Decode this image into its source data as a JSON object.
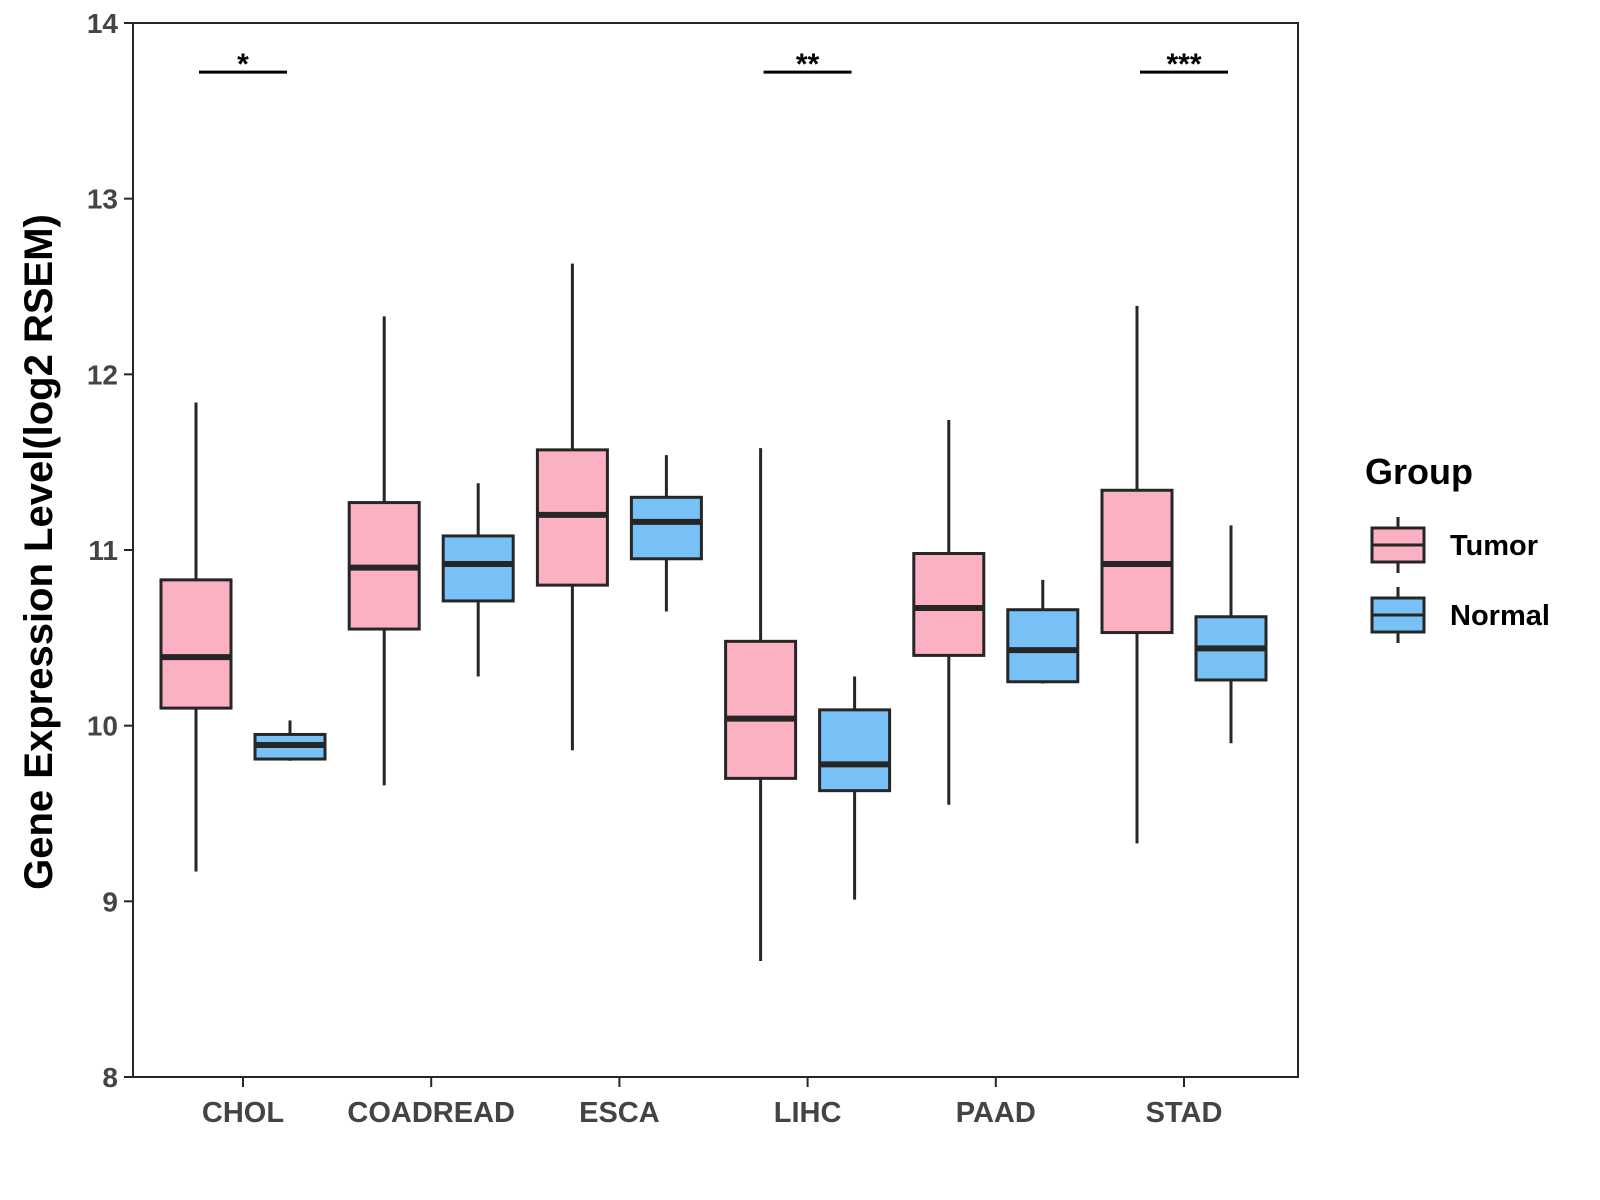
{
  "chart_data": {
    "type": "boxplot",
    "title": "",
    "xlabel": "",
    "ylabel": "Gene Expression Level(log2 RSEM)",
    "ylim": [
      8,
      14
    ],
    "yticks": [
      8,
      9,
      10,
      11,
      12,
      13,
      14
    ],
    "categories": [
      "CHOL",
      "COADREAD",
      "ESCA",
      "LIHC",
      "PAAD",
      "STAD"
    ],
    "legend": {
      "title": "Group",
      "position": "right",
      "items": [
        {
          "name": "Tumor",
          "color": "#FBB1C2"
        },
        {
          "name": "Normal",
          "color": "#77C1F7"
        }
      ]
    },
    "series": [
      {
        "name": "Tumor",
        "color": "#FBB1C2",
        "boxes": [
          {
            "category": "CHOL",
            "min": 9.17,
            "q1": 10.1,
            "median": 10.39,
            "q3": 10.83,
            "max": 11.84
          },
          {
            "category": "COADREAD",
            "min": 9.66,
            "q1": 10.55,
            "median": 10.9,
            "q3": 11.27,
            "max": 12.33
          },
          {
            "category": "ESCA",
            "min": 9.86,
            "q1": 10.8,
            "median": 11.2,
            "q3": 11.57,
            "max": 12.63
          },
          {
            "category": "LIHC",
            "min": 8.66,
            "q1": 9.7,
            "median": 10.04,
            "q3": 10.48,
            "max": 11.58
          },
          {
            "category": "PAAD",
            "min": 9.55,
            "q1": 10.4,
            "median": 10.67,
            "q3": 10.98,
            "max": 11.74
          },
          {
            "category": "STAD",
            "min": 9.33,
            "q1": 10.53,
            "median": 10.92,
            "q3": 11.34,
            "max": 12.39
          }
        ]
      },
      {
        "name": "Normal",
        "color": "#77C1F7",
        "boxes": [
          {
            "category": "CHOL",
            "min": 9.8,
            "q1": 9.81,
            "median": 9.89,
            "q3": 9.95,
            "max": 10.03
          },
          {
            "category": "COADREAD",
            "min": 10.28,
            "q1": 10.71,
            "median": 10.92,
            "q3": 11.08,
            "max": 11.38
          },
          {
            "category": "ESCA",
            "min": 10.65,
            "q1": 10.95,
            "median": 11.16,
            "q3": 11.3,
            "max": 11.54
          },
          {
            "category": "LIHC",
            "min": 9.01,
            "q1": 9.63,
            "median": 9.78,
            "q3": 10.09,
            "max": 10.28
          },
          {
            "category": "PAAD",
            "min": 10.24,
            "q1": 10.25,
            "median": 10.43,
            "q3": 10.66,
            "max": 10.83
          },
          {
            "category": "STAD",
            "min": 9.9,
            "q1": 10.26,
            "median": 10.44,
            "q3": 10.62,
            "max": 11.14
          }
        ]
      }
    ],
    "annotations": [
      {
        "category": "CHOL",
        "label": "*",
        "y": 13.72
      },
      {
        "category": "LIHC",
        "label": "**",
        "y": 13.72
      },
      {
        "category": "STAD",
        "label": "***",
        "y": 13.72
      }
    ]
  }
}
